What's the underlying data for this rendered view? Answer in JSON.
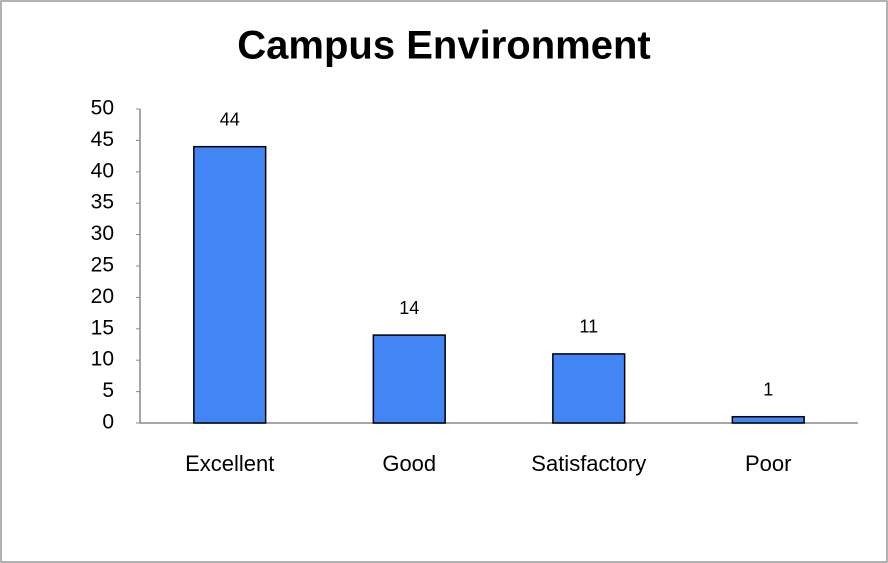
{
  "chart_data": {
    "type": "bar",
    "title": "Campus Environment",
    "categories": [
      "Excellent",
      "Good",
      "Satisfactory",
      "Poor"
    ],
    "values": [
      44,
      14,
      11,
      1
    ],
    "color": "#4285f4",
    "ylim": [
      0,
      50
    ],
    "yticks": [
      0,
      5,
      10,
      15,
      20,
      25,
      30,
      35,
      40,
      45,
      50
    ],
    "grid": false
  }
}
